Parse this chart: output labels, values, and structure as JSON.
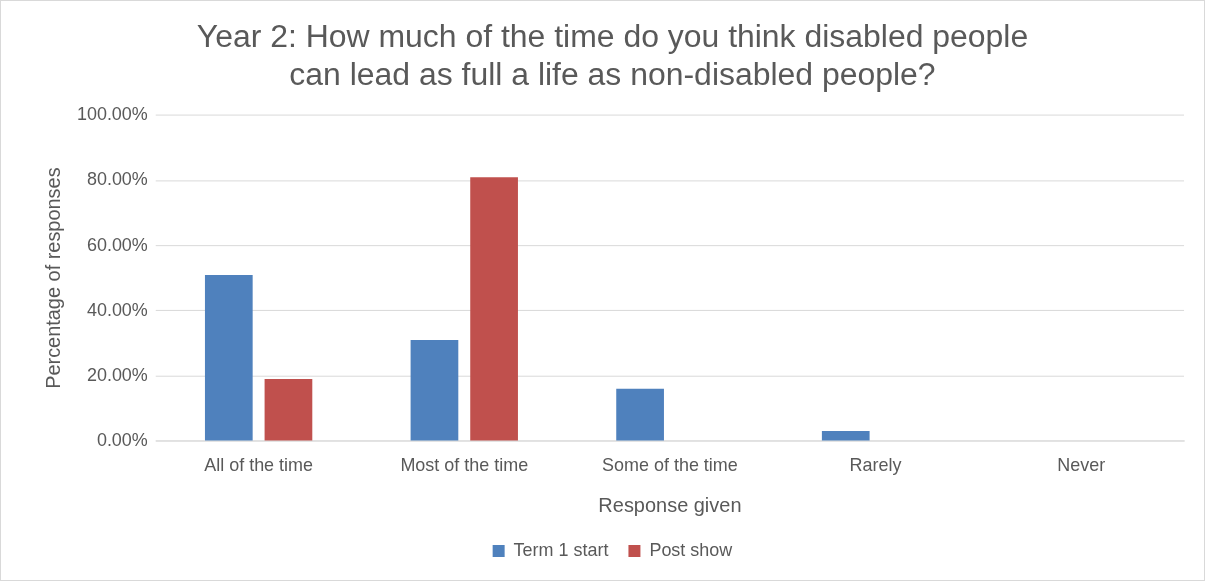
{
  "chart_data": {
    "type": "bar",
    "title": [
      "Year 2: How much of the time do you think disabled people",
      "can lead as full a life as non-disabled people?"
    ],
    "xlabel": "Response given",
    "ylabel": "Percentage of responses",
    "categories": [
      "All of the time",
      "Most of the time",
      "Some of the time",
      "Rarely",
      "Never"
    ],
    "series": [
      {
        "name": "Term 1 start",
        "color": "#4f81bd",
        "values": [
          51,
          31,
          16,
          3,
          0
        ]
      },
      {
        "name": "Post show",
        "color": "#c0504d",
        "values": [
          19,
          81,
          0,
          0,
          0
        ]
      }
    ],
    "ylim": [
      0,
      100
    ],
    "yticks": [
      {
        "value": 0,
        "label": "0.00%"
      },
      {
        "value": 20,
        "label": "20.00%"
      },
      {
        "value": 40,
        "label": "40.00%"
      },
      {
        "value": 60,
        "label": "60.00%"
      },
      {
        "value": 80,
        "label": "80.00%"
      },
      {
        "value": 100,
        "label": "100.00%"
      }
    ],
    "grid": "y",
    "legend": "bottom"
  }
}
